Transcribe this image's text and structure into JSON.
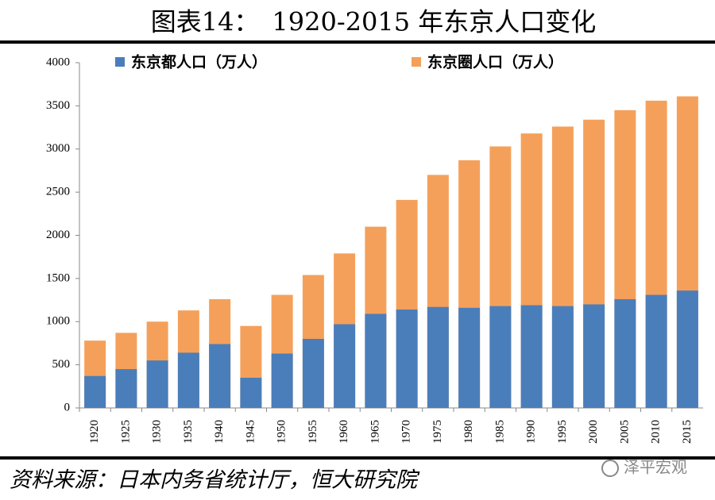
{
  "chart_data": {
    "type": "bar",
    "title": "图表14：　1920-2015 年东京人口变化",
    "categories": [
      "1920",
      "1925",
      "1930",
      "1935",
      "1940",
      "1945",
      "1950",
      "1955",
      "1960",
      "1965",
      "1970",
      "1975",
      "1980",
      "1985",
      "1990",
      "1995",
      "2000",
      "2005",
      "2010",
      "2015"
    ],
    "series": [
      {
        "name": "东京都人口（万人）",
        "color": "#4a7ebb",
        "values": [
          370,
          450,
          550,
          640,
          740,
          350,
          630,
          800,
          970,
          1090,
          1140,
          1170,
          1160,
          1180,
          1190,
          1180,
          1200,
          1260,
          1310,
          1360
        ]
      },
      {
        "name": "东京圈人口（万人）",
        "color": "#f5a05a",
        "values": [
          780,
          870,
          1000,
          1130,
          1260,
          950,
          1310,
          1540,
          1790,
          2100,
          2410,
          2700,
          2870,
          3030,
          3180,
          3260,
          3340,
          3450,
          3560,
          3610
        ]
      }
    ],
    "ylim": [
      0,
      4000
    ],
    "yticks": [
      0,
      500,
      1000,
      1500,
      2000,
      2500,
      3000,
      3500,
      4000
    ],
    "source": "资料来源：日本内务省统计厅，恒大研究院",
    "watermark": "泽平宏观"
  }
}
